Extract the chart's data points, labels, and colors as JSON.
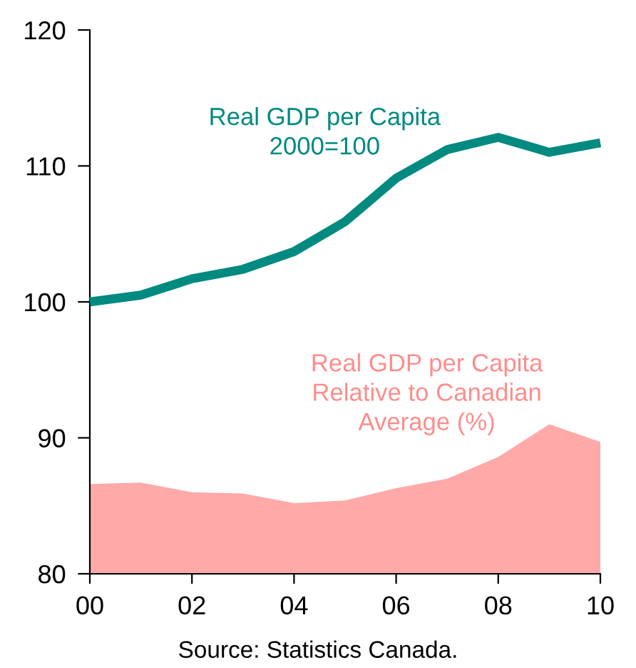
{
  "chart_data": {
    "type": "line",
    "x": [
      0,
      1,
      2,
      3,
      4,
      5,
      6,
      7,
      8,
      9,
      10
    ],
    "series": [
      {
        "name": "Real GDP per Capita\n2000=100",
        "color": "#008a80",
        "values": [
          100,
          100.5,
          101.7,
          102.4,
          103.7,
          105.9,
          109.1,
          111.2,
          112.1,
          111.0,
          111.7
        ]
      },
      {
        "name": "Real GDP per Capita\nRelative to Canadian\nAverage (%)",
        "type": "area",
        "color": "#ff8c8c",
        "values": [
          86.6,
          86.7,
          86.0,
          85.9,
          85.2,
          85.4,
          86.3,
          87.0,
          88.6,
          91.0,
          89.7
        ]
      }
    ],
    "xlim": [
      0,
      10
    ],
    "xticks": [
      {
        "value": 0,
        "label": "00"
      },
      {
        "value": 2,
        "label": "02"
      },
      {
        "value": 4,
        "label": "04"
      },
      {
        "value": 6,
        "label": "06"
      },
      {
        "value": 8,
        "label": "08"
      },
      {
        "value": 10,
        "label": "10"
      }
    ],
    "ylim": [
      80,
      120
    ],
    "yticks": [
      80,
      90,
      100,
      110,
      120
    ],
    "grid": false,
    "legend": false,
    "annotations": [
      "Source: Statistics Canada."
    ]
  }
}
